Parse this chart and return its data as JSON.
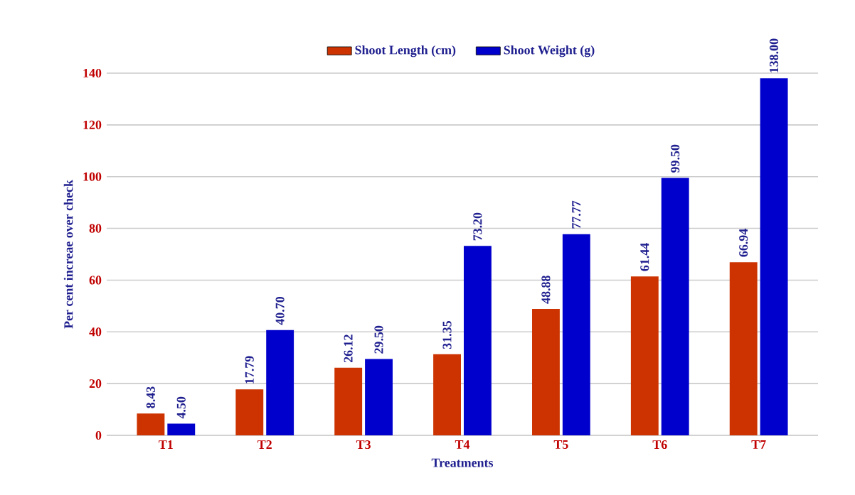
{
  "chart_data": {
    "type": "bar",
    "xlabel": "Treatments",
    "ylabel": "Per cent increae over check",
    "categories": [
      "T1",
      "T2",
      "T3",
      "T4",
      "T5",
      "T6",
      "T7"
    ],
    "series": [
      {
        "name": "Shoot Length (cm)",
        "color": "#cc3300",
        "values": [
          8.43,
          17.79,
          26.12,
          31.35,
          48.88,
          61.44,
          66.94
        ],
        "value_labels": [
          "8.43",
          "17.79",
          "26.12",
          "31.35",
          "48.88",
          "61.44",
          "66.94"
        ]
      },
      {
        "name": "Shoot Weight (g)",
        "color": "#0000cc",
        "values": [
          4.5,
          40.7,
          29.5,
          73.2,
          77.77,
          99.5,
          138.0
        ],
        "value_labels": [
          "4.50",
          "40.70",
          "29.50",
          "73.20",
          "77.77",
          "99.50",
          "138.00"
        ]
      }
    ],
    "ylim": [
      0,
      140
    ],
    "yticks": [
      0,
      20,
      40,
      60,
      80,
      100,
      120,
      140
    ],
    "grid": "y",
    "legend": "top"
  }
}
